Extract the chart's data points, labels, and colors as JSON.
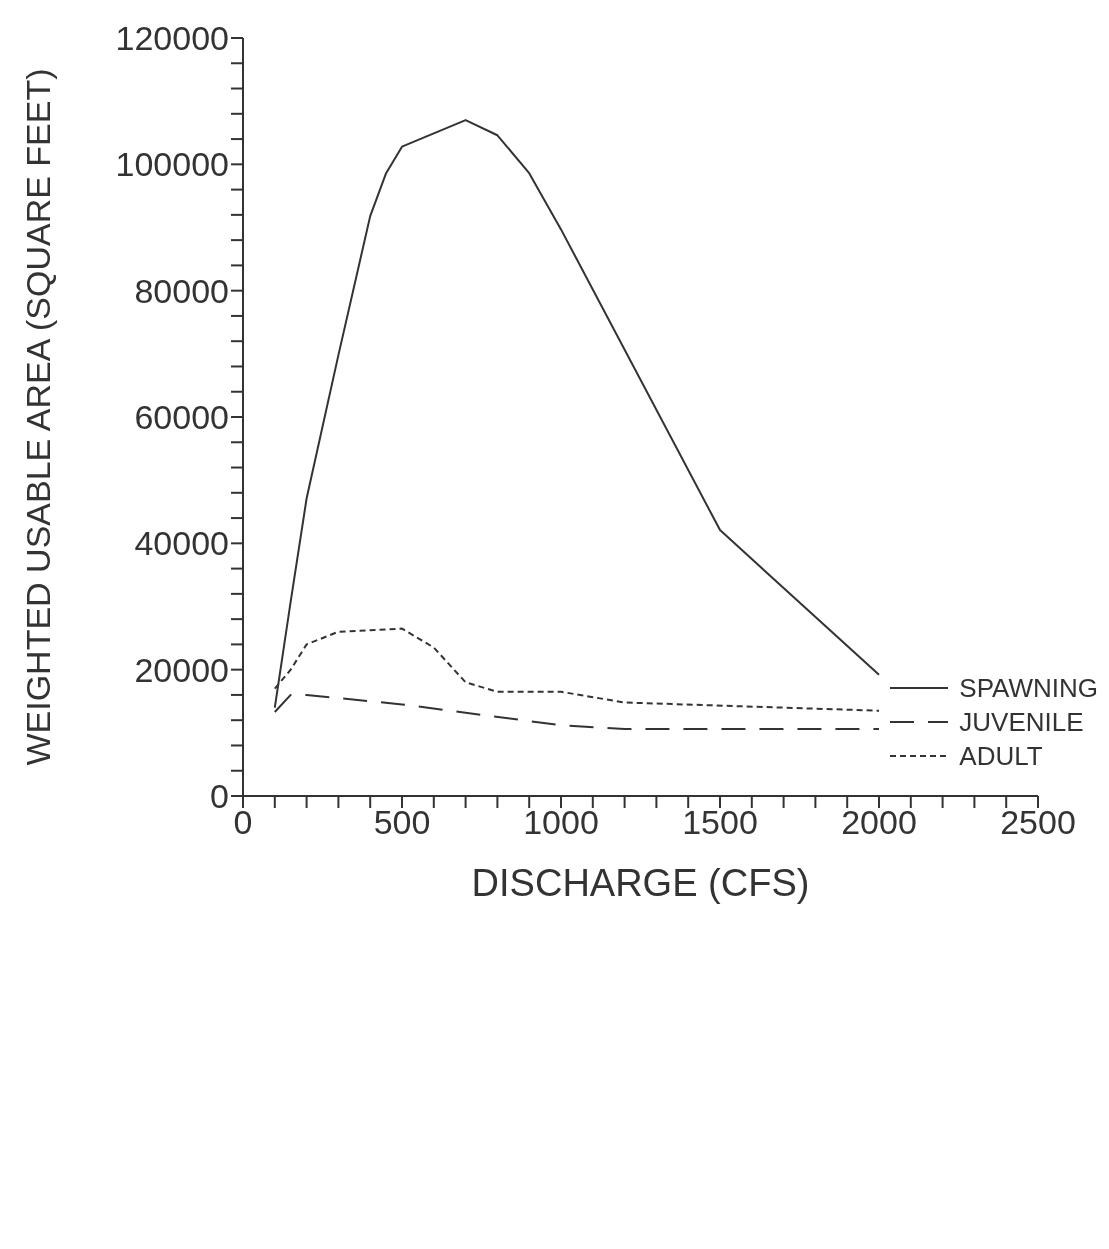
{
  "chart_data": {
    "type": "line",
    "xlabel": "DISCHARGE (CFS)",
    "ylabel": "WEIGHTED USABLE AREA (SQUARE FEET)",
    "xlim": [
      0,
      2500
    ],
    "ylim": [
      0,
      120000
    ],
    "xticks": [
      0,
      {
        "value": 100,
        "label": null
      },
      {
        "value": 200,
        "label": null
      },
      {
        "value": 300,
        "label": null
      },
      {
        "value": 400,
        "label": null
      },
      500,
      {
        "value": 600,
        "label": null
      },
      {
        "value": 700,
        "label": null
      },
      {
        "value": 800,
        "label": null
      },
      {
        "value": 900,
        "label": null
      },
      1000,
      {
        "value": 1100,
        "label": null
      },
      {
        "value": 1200,
        "label": null
      },
      {
        "value": 1300,
        "label": null
      },
      {
        "value": 1400,
        "label": null
      },
      1500,
      {
        "value": 1600,
        "label": null
      },
      {
        "value": 1700,
        "label": null
      },
      {
        "value": 1800,
        "label": null
      },
      {
        "value": 1900,
        "label": null
      },
      2000,
      {
        "value": 2100,
        "label": null
      },
      {
        "value": 2200,
        "label": null
      },
      {
        "value": 2300,
        "label": null
      },
      {
        "value": 2400,
        "label": null
      },
      2500
    ],
    "yticks": [
      0,
      {
        "value": 4000,
        "label": null
      },
      {
        "value": 8000,
        "label": null
      },
      {
        "value": 12000,
        "label": null
      },
      {
        "value": 16000,
        "label": null
      },
      20000,
      {
        "value": 24000,
        "label": null
      },
      {
        "value": 28000,
        "label": null
      },
      {
        "value": 32000,
        "label": null
      },
      {
        "value": 36000,
        "label": null
      },
      40000,
      {
        "value": 44000,
        "label": null
      },
      {
        "value": 48000,
        "label": null
      },
      {
        "value": 52000,
        "label": null
      },
      {
        "value": 56000,
        "label": null
      },
      60000,
      {
        "value": 64000,
        "label": null
      },
      {
        "value": 68000,
        "label": null
      },
      {
        "value": 72000,
        "label": null
      },
      {
        "value": 76000,
        "label": null
      },
      80000,
      {
        "value": 84000,
        "label": null
      },
      {
        "value": 88000,
        "label": null
      },
      {
        "value": 92000,
        "label": null
      },
      {
        "value": 96000,
        "label": null
      },
      100000,
      {
        "value": 104000,
        "label": null
      },
      {
        "value": 108000,
        "label": null
      },
      {
        "value": 112000,
        "label": null
      },
      {
        "value": 116000,
        "label": null
      },
      120000
    ],
    "grid": false,
    "legend": "bottom right",
    "marker": "none",
    "series": [
      {
        "name": "SPAWNING",
        "color": "#333333",
        "line_style": "solid",
        "x": [
          100,
          150,
          200,
          300,
          400,
          450,
          500,
          700,
          800,
          900,
          1000,
          1500,
          2000
        ],
        "values": [
          14000,
          30800,
          47100,
          69800,
          91800,
          98600,
          102800,
          107000,
          104600,
          98600,
          89700,
          42100,
          19200
        ]
      },
      {
        "name": "JUVENILE",
        "color": "#333333",
        "line_style": "dashed",
        "x": [
          100,
          150,
          200,
          500,
          1000,
          1200,
          2000
        ],
        "values": [
          13300,
          16000,
          16000,
          14500,
          11200,
          10600,
          10600
        ]
      },
      {
        "name": "ADULT",
        "color": "#333333",
        "line_style": "dotted",
        "x": [
          100,
          150,
          200,
          300,
          500,
          600,
          700,
          800,
          1000,
          1200,
          2000
        ],
        "values": [
          17000,
          20000,
          24000,
          26000,
          26500,
          23500,
          18000,
          16500,
          16500,
          14800,
          13500
        ]
      }
    ]
  }
}
